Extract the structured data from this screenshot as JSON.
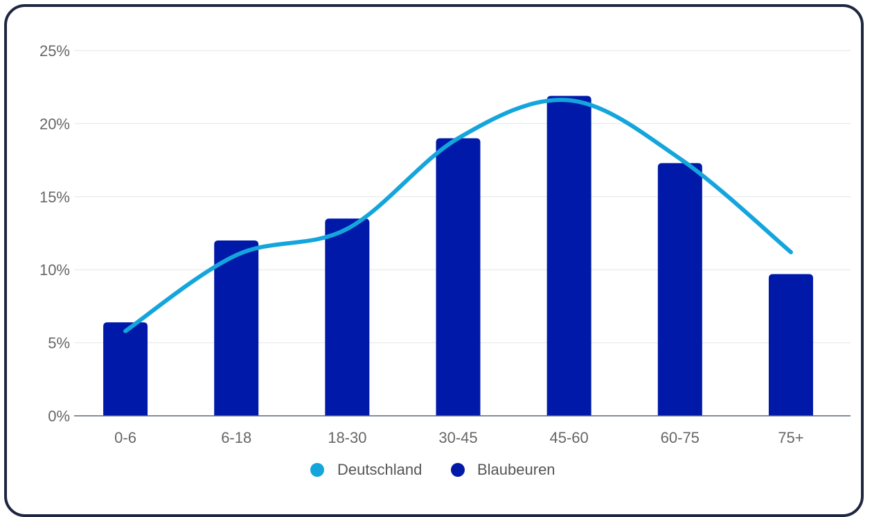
{
  "chart_data": {
    "type": "bar",
    "categories": [
      "0-6",
      "6-18",
      "18-30",
      "30-45",
      "45-60",
      "60-75",
      "75+"
    ],
    "series": [
      {
        "name": "Blaubeuren",
        "kind": "bar",
        "color": "#0019a8",
        "values": [
          6.4,
          12.0,
          13.5,
          19.0,
          21.9,
          17.3,
          9.7
        ]
      },
      {
        "name": "Deutschland",
        "kind": "line",
        "smooth": true,
        "color": "#14a5dc",
        "values": [
          5.8,
          11.0,
          12.8,
          19.0,
          21.6,
          17.6,
          11.2
        ]
      }
    ],
    "ylim": [
      0,
      25
    ],
    "y_ticks": [
      "0%",
      "5%",
      "10%",
      "15%",
      "20%",
      "25%"
    ],
    "y_tick_values": [
      0,
      5,
      10,
      15,
      20,
      25
    ],
    "grid": true,
    "legend_position": "bottom",
    "legend": [
      "Deutschland",
      "Blaubeuren"
    ]
  }
}
